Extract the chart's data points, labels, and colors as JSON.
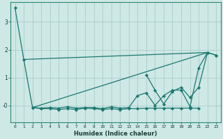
{
  "xlabel": "Humidex (Indice chaleur)",
  "bg_color": "#cde8e5",
  "grid_color": "#b0d0cc",
  "line_color": "#1a7870",
  "xlim": [
    -0.5,
    23.5
  ],
  "ylim": [
    -0.6,
    3.7
  ],
  "xticks": [
    0,
    1,
    2,
    3,
    4,
    5,
    6,
    7,
    8,
    9,
    10,
    11,
    12,
    13,
    14,
    15,
    16,
    17,
    18,
    19,
    20,
    21,
    22,
    23
  ],
  "series": [
    {
      "x": [
        0,
        1,
        2,
        3,
        4,
        5,
        6,
        7,
        8,
        9,
        10,
        11,
        12,
        13,
        14,
        15,
        16,
        17,
        18,
        19,
        20,
        21
      ],
      "y": [
        3.5,
        1.65,
        -0.08,
        -0.12,
        -0.12,
        -0.15,
        -0.12,
        -0.15,
        -0.1,
        -0.12,
        -0.15,
        -0.12,
        -0.15,
        -0.12,
        -0.12,
        -0.1,
        -0.1,
        -0.1,
        -0.1,
        -0.1,
        -0.1,
        -0.1
      ],
      "marker": true
    },
    {
      "x": [
        2,
        3,
        4,
        5,
        6,
        7,
        8,
        9,
        10,
        11,
        12,
        13,
        14,
        15,
        16,
        17,
        18,
        19,
        20,
        21,
        22,
        23
      ],
      "y": [
        -0.08,
        -0.1,
        -0.08,
        -0.1,
        -0.05,
        -0.1,
        -0.08,
        -0.08,
        -0.12,
        -0.05,
        -0.1,
        -0.08,
        0.35,
        0.45,
        -0.0,
        0.35,
        0.55,
        0.55,
        -0.05,
        1.35,
        1.9,
        1.8
      ],
      "marker": true
    },
    {
      "x": [
        15,
        16,
        17,
        18,
        19,
        20,
        21,
        22,
        23
      ],
      "y": [
        1.1,
        0.55,
        0.05,
        0.5,
        0.65,
        0.28,
        0.65,
        1.9,
        1.8
      ],
      "marker": true
    },
    {
      "x": [
        2,
        22
      ],
      "y": [
        -0.08,
        1.9
      ],
      "marker": false
    },
    {
      "x": [
        1,
        22
      ],
      "y": [
        1.65,
        1.9
      ],
      "marker": false
    }
  ]
}
